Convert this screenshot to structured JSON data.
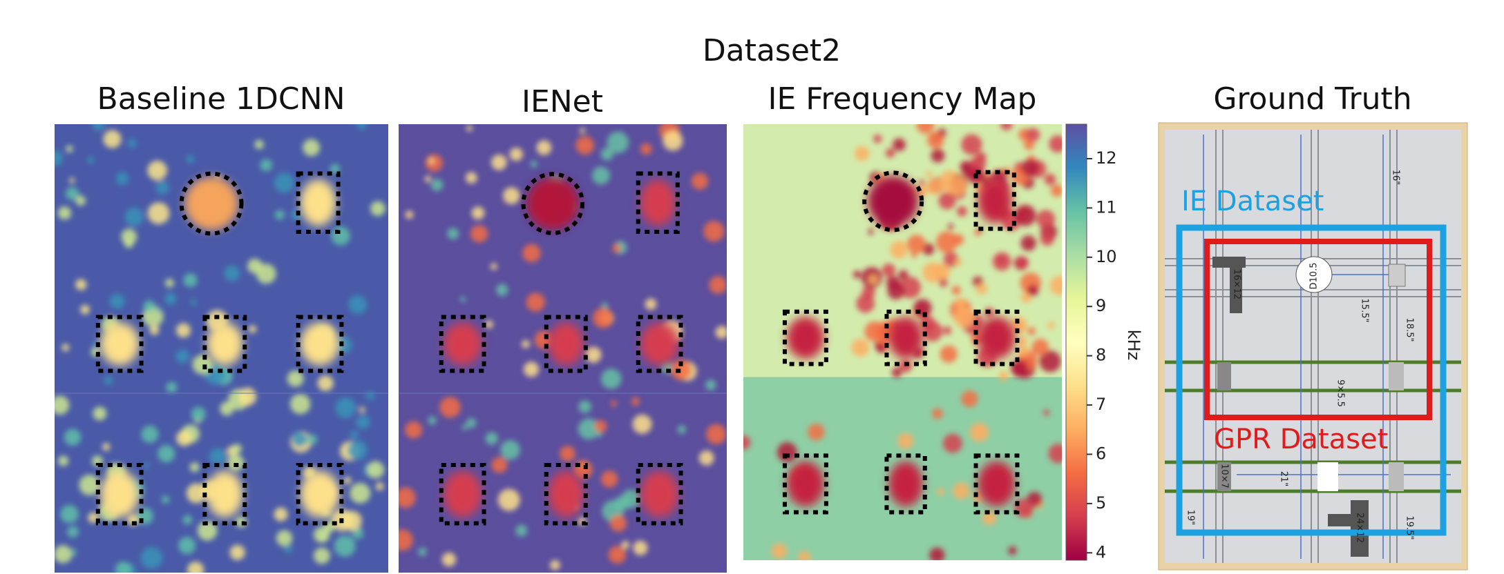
{
  "title": "Dataset2",
  "panels": [
    {
      "title": "Baseline 1DCNN"
    },
    {
      "title": "IENet"
    },
    {
      "title": "IE Frequency Map"
    },
    {
      "title": "Ground Truth"
    }
  ],
  "colorbar": {
    "label": "kHz",
    "lim": [
      3.85,
      12.7
    ],
    "ticks": [
      4,
      5,
      6,
      7,
      8,
      9,
      10,
      11,
      12
    ]
  },
  "ground_truth": {
    "regions": [
      "IE Dataset",
      "GPR Dataset"
    ],
    "dimensions": [
      "16\"",
      "D10.5",
      "15.5\"",
      "18.5\"",
      "9×5.5",
      "21\"",
      "19\"",
      "19.5\"",
      "16×12",
      "10×7",
      "24×12"
    ]
  }
}
